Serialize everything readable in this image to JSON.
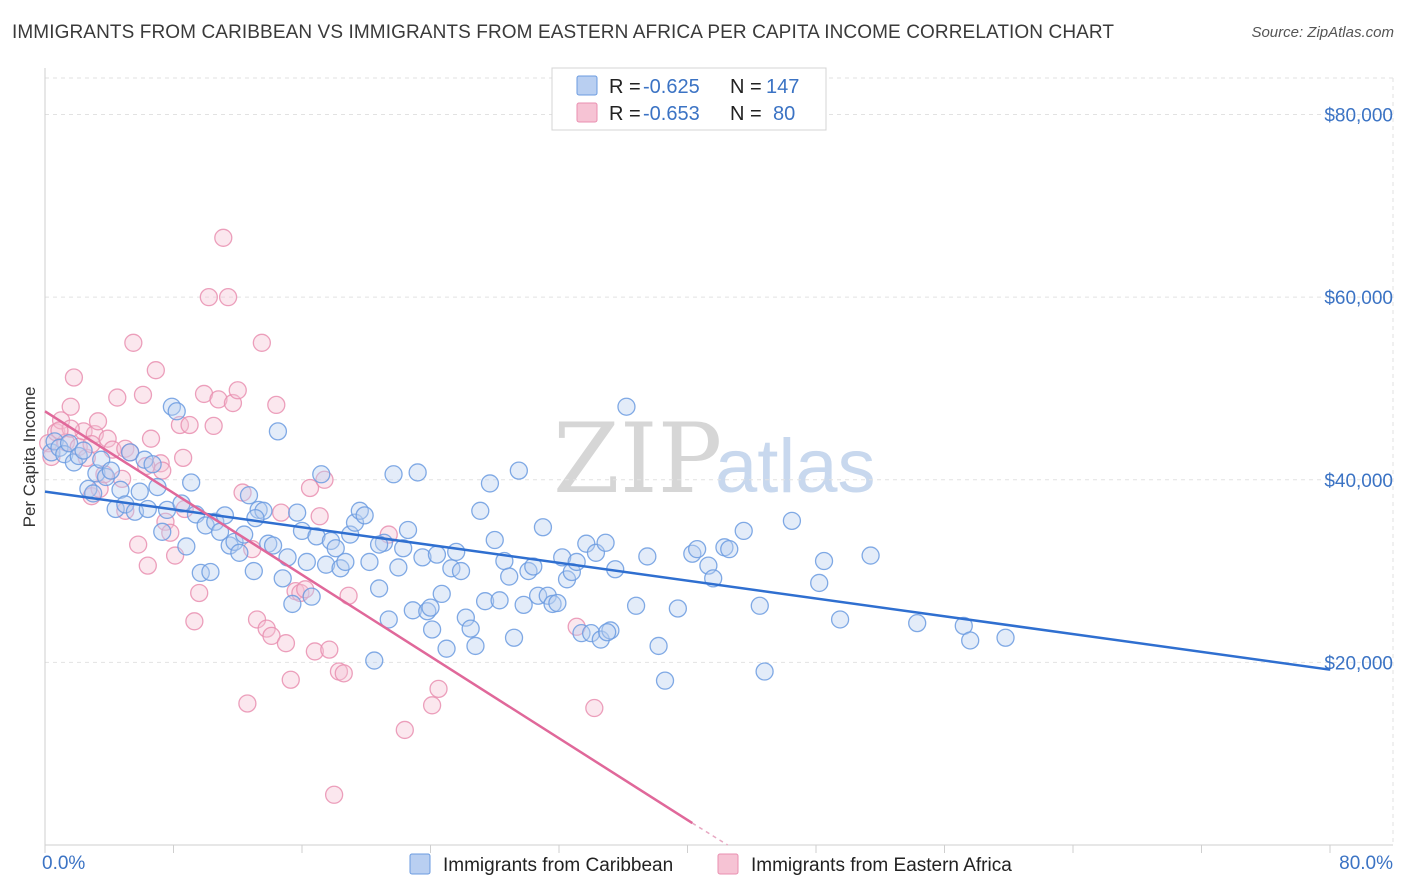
{
  "title": "IMMIGRANTS FROM CARIBBEAN VS IMMIGRANTS FROM EASTERN AFRICA PER CAPITA INCOME CORRELATION CHART",
  "source": "Source: ZipAtlas.com",
  "watermark": {
    "zip": "ZIP",
    "atlas": "atlas"
  },
  "chart_data": {
    "type": "scatter",
    "title": "IMMIGRANTS FROM CARIBBEAN VS IMMIGRANTS FROM EASTERN AFRICA PER CAPITA INCOME CORRELATION CHART",
    "xlabel": "",
    "ylabel": "Per Capita Income",
    "xlim": [
      0,
      80
    ],
    "ylim": [
      0,
      84000
    ],
    "x_tick_labels": [
      "0.0%",
      "80.0%"
    ],
    "y_ticks": [
      20000,
      40000,
      60000,
      80000
    ],
    "y_tick_labels": [
      "$20,000",
      "$40,000",
      "$60,000",
      "$80,000"
    ],
    "grid": true,
    "legend": {
      "placement": "top-center",
      "rows": [
        {
          "r_label": "R =",
          "r_value": "-0.625",
          "n_label": "N =",
          "n_value": "147"
        },
        {
          "r_label": "R =",
          "r_value": "-0.653",
          "n_label": "N =",
          "n_value": "80"
        }
      ]
    },
    "series": [
      {
        "name": "Immigrants from Caribbean",
        "color": "#7aa7e0",
        "line_color": "#2f6fd0",
        "trend": {
          "x": [
            0,
            80
          ],
          "y": [
            38700,
            19200
          ]
        },
        "points": [
          [
            0.4,
            43000
          ],
          [
            0.6,
            44200
          ],
          [
            0.9,
            43500
          ],
          [
            1.2,
            42800
          ],
          [
            1.5,
            44000
          ],
          [
            1.8,
            41900
          ],
          [
            2.1,
            42600
          ],
          [
            2.4,
            43200
          ],
          [
            2.7,
            39000
          ],
          [
            3.0,
            38500
          ],
          [
            3.2,
            40700
          ],
          [
            3.5,
            42200
          ],
          [
            3.8,
            40300
          ],
          [
            4.1,
            41000
          ],
          [
            4.4,
            36800
          ],
          [
            4.7,
            38900
          ],
          [
            5.0,
            37300
          ],
          [
            5.3,
            43000
          ],
          [
            5.6,
            36500
          ],
          [
            5.9,
            38700
          ],
          [
            6.2,
            42200
          ],
          [
            6.4,
            36800
          ],
          [
            6.7,
            41700
          ],
          [
            7.0,
            39200
          ],
          [
            7.3,
            34300
          ],
          [
            7.6,
            36700
          ],
          [
            7.9,
            48000
          ],
          [
            8.2,
            47500
          ],
          [
            8.5,
            37400
          ],
          [
            8.8,
            32700
          ],
          [
            9.1,
            39700
          ],
          [
            9.4,
            36200
          ],
          [
            9.7,
            29800
          ],
          [
            10.0,
            35000
          ],
          [
            10.3,
            29900
          ],
          [
            10.6,
            35400
          ],
          [
            10.9,
            34300
          ],
          [
            11.2,
            36100
          ],
          [
            11.5,
            32800
          ],
          [
            11.8,
            33200
          ],
          [
            12.1,
            32000
          ],
          [
            12.4,
            34000
          ],
          [
            12.7,
            38300
          ],
          [
            13.0,
            30000
          ],
          [
            13.3,
            36700
          ],
          [
            13.6,
            36600
          ],
          [
            13.9,
            33000
          ],
          [
            14.2,
            32800
          ],
          [
            14.5,
            45300
          ],
          [
            14.8,
            29200
          ],
          [
            15.1,
            31500
          ],
          [
            15.4,
            26400
          ],
          [
            15.7,
            36400
          ],
          [
            16.0,
            34400
          ],
          [
            16.3,
            31000
          ],
          [
            16.6,
            27200
          ],
          [
            16.9,
            33800
          ],
          [
            17.2,
            40600
          ],
          [
            17.5,
            30700
          ],
          [
            17.8,
            33300
          ],
          [
            18.1,
            32500
          ],
          [
            18.4,
            30300
          ],
          [
            18.7,
            31000
          ],
          [
            19.0,
            34000
          ],
          [
            19.3,
            35300
          ],
          [
            19.6,
            36600
          ],
          [
            19.9,
            36100
          ],
          [
            20.2,
            31000
          ],
          [
            20.5,
            20200
          ],
          [
            20.8,
            28100
          ],
          [
            21.1,
            33100
          ],
          [
            21.4,
            24700
          ],
          [
            21.7,
            40600
          ],
          [
            22.0,
            30400
          ],
          [
            22.3,
            32500
          ],
          [
            22.6,
            34500
          ],
          [
            22.9,
            25700
          ],
          [
            23.2,
            40800
          ],
          [
            23.5,
            31500
          ],
          [
            23.8,
            25600
          ],
          [
            24.1,
            23600
          ],
          [
            24.4,
            31800
          ],
          [
            24.7,
            27500
          ],
          [
            25.0,
            21500
          ],
          [
            25.3,
            30300
          ],
          [
            25.6,
            32100
          ],
          [
            25.9,
            30000
          ],
          [
            26.2,
            24900
          ],
          [
            26.5,
            23700
          ],
          [
            26.8,
            21800
          ],
          [
            27.1,
            36600
          ],
          [
            27.4,
            26700
          ],
          [
            27.7,
            39600
          ],
          [
            28.0,
            33400
          ],
          [
            28.3,
            26800
          ],
          [
            28.6,
            31100
          ],
          [
            28.9,
            29400
          ],
          [
            29.2,
            22700
          ],
          [
            29.5,
            41000
          ],
          [
            29.8,
            26300
          ],
          [
            30.1,
            30000
          ],
          [
            30.4,
            30500
          ],
          [
            30.7,
            27300
          ],
          [
            31.0,
            34800
          ],
          [
            31.3,
            27300
          ],
          [
            31.6,
            26400
          ],
          [
            31.9,
            26500
          ],
          [
            32.2,
            31500
          ],
          [
            32.5,
            29100
          ],
          [
            32.8,
            29900
          ],
          [
            33.1,
            31000
          ],
          [
            33.4,
            23200
          ],
          [
            33.7,
            33000
          ],
          [
            34.0,
            23200
          ],
          [
            34.3,
            32000
          ],
          [
            34.6,
            22500
          ],
          [
            34.9,
            33100
          ],
          [
            35.2,
            23500
          ],
          [
            35.5,
            30200
          ],
          [
            36.2,
            48000
          ],
          [
            36.8,
            26200
          ],
          [
            37.5,
            31600
          ],
          [
            38.2,
            21800
          ],
          [
            38.6,
            18000
          ],
          [
            39.4,
            25900
          ],
          [
            40.3,
            31900
          ],
          [
            40.6,
            32400
          ],
          [
            41.3,
            30600
          ],
          [
            41.6,
            29200
          ],
          [
            42.3,
            32600
          ],
          [
            42.6,
            32400
          ],
          [
            43.5,
            34400
          ],
          [
            44.5,
            26200
          ],
          [
            44.8,
            19000
          ],
          [
            46.5,
            35500
          ],
          [
            48.2,
            28700
          ],
          [
            48.5,
            31100
          ],
          [
            49.5,
            24700
          ],
          [
            51.4,
            31700
          ],
          [
            54.3,
            24300
          ],
          [
            57.2,
            24000
          ],
          [
            57.6,
            22400
          ],
          [
            59.8,
            22700
          ],
          [
            20.8,
            32900
          ],
          [
            24.0,
            26000
          ],
          [
            35.0,
            23300
          ],
          [
            13.1,
            35800
          ]
        ]
      },
      {
        "name": "Immigrants from Eastern Africa",
        "color": "#f0a0bd",
        "line_color": "#e0689a",
        "trend": {
          "x": [
            0,
            40.3
          ],
          "y": [
            47500,
            2400
          ]
        },
        "trend_dashed": {
          "x": [
            40.3,
            42.5
          ],
          "y": [
            2400,
            0
          ]
        },
        "points": [
          [
            0.2,
            44000
          ],
          [
            0.4,
            42500
          ],
          [
            0.7,
            45200
          ],
          [
            1.0,
            46500
          ],
          [
            1.3,
            44100
          ],
          [
            1.6,
            48000
          ],
          [
            1.8,
            51200
          ],
          [
            2.1,
            43600
          ],
          [
            2.4,
            45300
          ],
          [
            2.6,
            42400
          ],
          [
            2.9,
            38200
          ],
          [
            3.1,
            45000
          ],
          [
            3.4,
            39000
          ],
          [
            3.7,
            40600
          ],
          [
            3.9,
            44500
          ],
          [
            4.2,
            43300
          ],
          [
            4.5,
            49000
          ],
          [
            4.8,
            40100
          ],
          [
            5.0,
            43400
          ],
          [
            5.3,
            43000
          ],
          [
            5.5,
            55000
          ],
          [
            5.8,
            32900
          ],
          [
            6.1,
            49300
          ],
          [
            6.4,
            30600
          ],
          [
            6.6,
            44500
          ],
          [
            6.9,
            52000
          ],
          [
            7.2,
            41800
          ],
          [
            7.5,
            35400
          ],
          [
            7.8,
            34200
          ],
          [
            8.1,
            31700
          ],
          [
            8.4,
            46000
          ],
          [
            8.7,
            36800
          ],
          [
            9.0,
            46000
          ],
          [
            9.3,
            24500
          ],
          [
            9.6,
            27600
          ],
          [
            9.9,
            49400
          ],
          [
            10.2,
            60000
          ],
          [
            10.5,
            45900
          ],
          [
            10.8,
            48800
          ],
          [
            11.1,
            66500
          ],
          [
            11.4,
            60000
          ],
          [
            11.7,
            48400
          ],
          [
            12.0,
            49800
          ],
          [
            12.3,
            38600
          ],
          [
            12.6,
            15500
          ],
          [
            12.9,
            32400
          ],
          [
            13.2,
            24700
          ],
          [
            13.5,
            55000
          ],
          [
            13.8,
            23700
          ],
          [
            14.1,
            22900
          ],
          [
            14.4,
            48200
          ],
          [
            14.7,
            36400
          ],
          [
            15.0,
            22100
          ],
          [
            15.3,
            18100
          ],
          [
            15.6,
            27800
          ],
          [
            15.9,
            27600
          ],
          [
            16.2,
            28000
          ],
          [
            16.5,
            39100
          ],
          [
            16.8,
            21200
          ],
          [
            17.1,
            36000
          ],
          [
            17.4,
            40000
          ],
          [
            17.7,
            21400
          ],
          [
            18.0,
            5500
          ],
          [
            18.3,
            19000
          ],
          [
            18.6,
            18800
          ],
          [
            18.9,
            27300
          ],
          [
            21.4,
            34000
          ],
          [
            22.4,
            12600
          ],
          [
            24.1,
            15300
          ],
          [
            24.5,
            17100
          ],
          [
            33.1,
            23900
          ],
          [
            34.2,
            15000
          ],
          [
            7.3,
            41000
          ],
          [
            3.3,
            46400
          ],
          [
            2.9,
            43900
          ],
          [
            1.6,
            45600
          ],
          [
            0.9,
            45400
          ],
          [
            6.3,
            41500
          ],
          [
            5.0,
            36600
          ],
          [
            8.6,
            42400
          ]
        ]
      }
    ]
  },
  "bottom_legend": {
    "caribbean": "Immigrants from Caribbean",
    "eastern_africa": "Immigrants from Eastern Africa"
  },
  "colors": {
    "blue_fill": "#b9cff1",
    "blue_stroke": "#6b9be0",
    "pink_fill": "#f6c3d4",
    "pink_stroke": "#e98fb0",
    "accent_text": "#3b73c4"
  }
}
